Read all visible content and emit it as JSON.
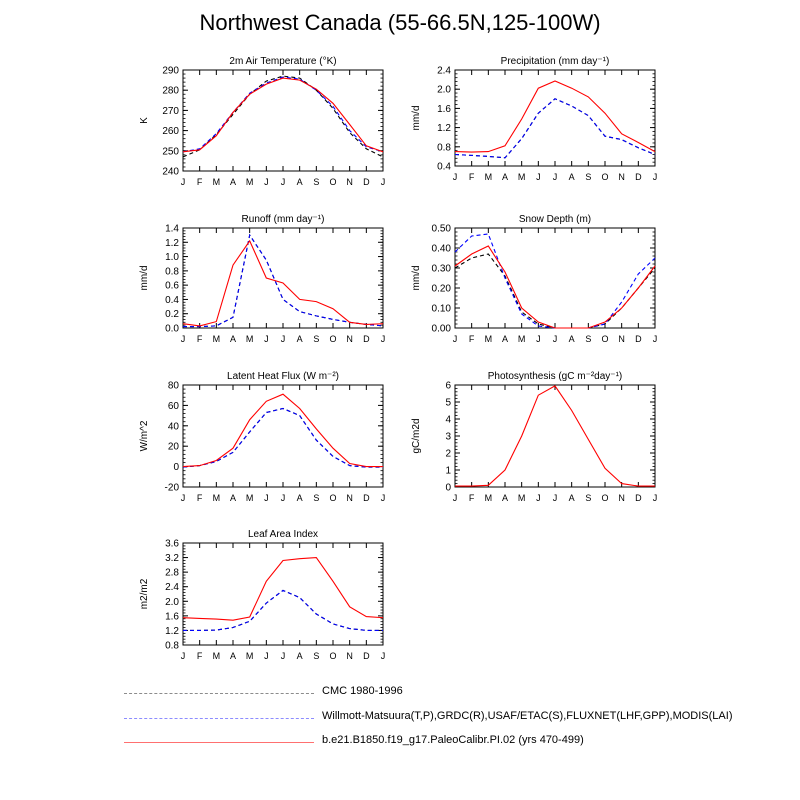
{
  "page": {
    "title": "Northwest Canada (55-66.5N,125-100W)"
  },
  "colors": {
    "obs1": "#000000",
    "obs2": "#0000ff",
    "model": "#ff0000",
    "legend_obs1": "#8c8c8c",
    "legend_obs2": "#8c8cff",
    "legend_model": "#ff7070"
  },
  "legend": [
    {
      "label": "CMC 1980-1996",
      "style": "dashed",
      "color_key": "legend_obs1"
    },
    {
      "label": "Willmott-Matsuura(T,P),GRDC(R),USAF/ETAC(S),FLUXNET(LHF,GPP),MODIS(LAI)",
      "style": "dashed",
      "color_key": "legend_obs2"
    },
    {
      "label": "b.e21.B1850.f19_g17.PaleoCalibr.PI.02 (yrs 470-499)",
      "style": "solid",
      "color_key": "legend_model"
    }
  ],
  "chart_data": [
    {
      "type": "line",
      "title": "2m Air Temperature (°K)",
      "ylabel": "K",
      "categories": [
        "J",
        "F",
        "M",
        "A",
        "M",
        "J",
        "J",
        "A",
        "S",
        "O",
        "N",
        "D",
        "J"
      ],
      "ylim": [
        240,
        290
      ],
      "yticks": [
        240,
        250,
        260,
        270,
        280,
        290
      ],
      "series": [
        {
          "style": "dashed",
          "color_key": "obs1",
          "values": [
            247,
            250.5,
            258,
            268,
            278,
            284.5,
            287,
            286,
            280,
            271,
            259,
            251,
            247
          ]
        },
        {
          "style": "dashed",
          "color_key": "obs2",
          "values": [
            249.5,
            251,
            258.5,
            269,
            278.5,
            283.5,
            286.5,
            285.5,
            280,
            272,
            260,
            252,
            249.5
          ]
        },
        {
          "style": "solid",
          "color_key": "model",
          "values": [
            249.5,
            250.5,
            257.5,
            269,
            278,
            283,
            286,
            285,
            280.5,
            273.5,
            263,
            252.5,
            249.5
          ]
        }
      ]
    },
    {
      "type": "line",
      "title": "Precipitation (mm day⁻¹)",
      "ylabel": "mm/d",
      "categories": [
        "J",
        "F",
        "M",
        "A",
        "M",
        "J",
        "J",
        "A",
        "S",
        "O",
        "N",
        "D",
        "J"
      ],
      "ylim": [
        0.4,
        2.4
      ],
      "yticks": [
        0.4,
        0.8,
        1.2,
        1.6,
        2.0,
        2.4
      ],
      "series": [
        {
          "style": "dashed",
          "color_key": "obs1",
          "values": [
            0.64,
            0.62,
            0.6,
            0.57,
            0.97,
            1.5,
            1.8,
            1.65,
            1.45,
            1.02,
            0.95,
            0.78,
            0.64
          ]
        },
        {
          "style": "dashed",
          "color_key": "obs2",
          "values": [
            0.64,
            0.62,
            0.6,
            0.57,
            0.97,
            1.5,
            1.8,
            1.65,
            1.45,
            1.02,
            0.95,
            0.78,
            0.64
          ]
        },
        {
          "style": "solid",
          "color_key": "model",
          "values": [
            0.7,
            0.69,
            0.7,
            0.82,
            1.38,
            2.02,
            2.17,
            2.02,
            1.84,
            1.5,
            1.07,
            0.89,
            0.7
          ]
        }
      ]
    },
    {
      "type": "line",
      "title": "Runoff (mm day⁻¹)",
      "ylabel": "mm/d",
      "categories": [
        "J",
        "F",
        "M",
        "A",
        "M",
        "J",
        "J",
        "A",
        "S",
        "O",
        "N",
        "D",
        "J"
      ],
      "ylim": [
        0,
        1.4
      ],
      "yticks": [
        0.0,
        0.2,
        0.4,
        0.6,
        0.8,
        1.0,
        1.2,
        1.4
      ],
      "series": [
        {
          "style": "dashed",
          "color_key": "obs1",
          "values": [
            0.02,
            0.02,
            0.03,
            0.15,
            1.3,
            0.95,
            0.4,
            0.23,
            0.17,
            0.12,
            0.08,
            0.05,
            0.03
          ]
        },
        {
          "style": "dashed",
          "color_key": "obs2",
          "values": [
            0.02,
            0.02,
            0.03,
            0.15,
            1.3,
            0.95,
            0.4,
            0.23,
            0.17,
            0.12,
            0.08,
            0.05,
            0.03
          ]
        },
        {
          "style": "solid",
          "color_key": "model",
          "values": [
            0.06,
            0.03,
            0.09,
            0.88,
            1.22,
            0.7,
            0.63,
            0.4,
            0.37,
            0.27,
            0.08,
            0.05,
            0.06
          ]
        }
      ]
    },
    {
      "type": "line",
      "title": "Snow Depth (m)",
      "ylabel": "mm/d",
      "categories": [
        "J",
        "F",
        "M",
        "A",
        "M",
        "J",
        "J",
        "A",
        "S",
        "O",
        "N",
        "D",
        "J"
      ],
      "ylim": [
        0,
        0.5
      ],
      "yticks": [
        0.0,
        0.1,
        0.2,
        0.3,
        0.4,
        0.5
      ],
      "series": [
        {
          "style": "dashed",
          "color_key": "obs1",
          "values": [
            0.3,
            0.35,
            0.37,
            0.26,
            0.08,
            0.02,
            0.0,
            0.0,
            0.0,
            0.02,
            0.1,
            0.2,
            0.3
          ]
        },
        {
          "style": "dashed",
          "color_key": "obs2",
          "values": [
            0.38,
            0.46,
            0.47,
            0.25,
            0.07,
            0.01,
            0.0,
            0.0,
            0.0,
            0.02,
            0.13,
            0.27,
            0.35
          ]
        },
        {
          "style": "solid",
          "color_key": "model",
          "values": [
            0.31,
            0.37,
            0.41,
            0.28,
            0.1,
            0.03,
            0.0,
            0.0,
            0.0,
            0.03,
            0.1,
            0.2,
            0.31
          ]
        }
      ]
    },
    {
      "type": "line",
      "title": "Latent Heat Flux (W m⁻²)",
      "ylabel": "W/m^2",
      "categories": [
        "J",
        "F",
        "M",
        "A",
        "M",
        "J",
        "J",
        "A",
        "S",
        "O",
        "N",
        "D",
        "J"
      ],
      "ylim": [
        -20,
        80
      ],
      "yticks": [
        -20,
        0,
        20,
        40,
        60,
        80
      ],
      "series": [
        {
          "style": "dashed",
          "color_key": "obs1",
          "values": [
            -0.5,
            1,
            5,
            14,
            34,
            53,
            57,
            50,
            26,
            10,
            1,
            -0.5,
            -0.5
          ]
        },
        {
          "style": "dashed",
          "color_key": "obs2",
          "values": [
            -0.5,
            1,
            5,
            14,
            34,
            53,
            57,
            50,
            26,
            10,
            1,
            -0.5,
            -0.5
          ]
        },
        {
          "style": "solid",
          "color_key": "model",
          "values": [
            0,
            1,
            6,
            18,
            46,
            64,
            71,
            57,
            37,
            18,
            3,
            0,
            0
          ]
        }
      ]
    },
    {
      "type": "line",
      "title": "Photosynthesis (gC m⁻²day⁻¹)",
      "ylabel": "gC/m2d",
      "categories": [
        "J",
        "F",
        "M",
        "A",
        "M",
        "J",
        "J",
        "A",
        "S",
        "O",
        "N",
        "D",
        "J"
      ],
      "ylim": [
        0,
        6.0
      ],
      "yticks": [
        0.0,
        1.0,
        2.0,
        3.0,
        4.0,
        5.0,
        6.0
      ],
      "series": [
        {
          "style": "solid",
          "color_key": "model",
          "values": [
            0.05,
            0.05,
            0.1,
            1.0,
            3.0,
            5.4,
            5.95,
            4.5,
            2.8,
            1.1,
            0.2,
            0.05,
            0.05
          ]
        }
      ]
    },
    {
      "type": "line",
      "title": "Leaf Area Index",
      "ylabel": "m2/m2",
      "categories": [
        "J",
        "F",
        "M",
        "A",
        "M",
        "J",
        "J",
        "A",
        "S",
        "O",
        "N",
        "D",
        "J"
      ],
      "ylim": [
        0.8,
        3.6
      ],
      "yticks": [
        0.8,
        1.2,
        1.6,
        2.0,
        2.4,
        2.8,
        3.2,
        3.6
      ],
      "series": [
        {
          "style": "dashed",
          "color_key": "obs1",
          "values": [
            1.2,
            1.2,
            1.21,
            1.28,
            1.45,
            1.95,
            2.3,
            2.1,
            1.65,
            1.38,
            1.25,
            1.2,
            1.2
          ]
        },
        {
          "style": "dashed",
          "color_key": "obs2",
          "values": [
            1.2,
            1.2,
            1.21,
            1.28,
            1.45,
            1.95,
            2.3,
            2.1,
            1.65,
            1.38,
            1.25,
            1.2,
            1.2
          ]
        },
        {
          "style": "solid",
          "color_key": "model",
          "values": [
            1.55,
            1.53,
            1.51,
            1.48,
            1.57,
            2.55,
            3.12,
            3.17,
            3.2,
            2.55,
            1.85,
            1.58,
            1.55
          ]
        }
      ]
    }
  ]
}
